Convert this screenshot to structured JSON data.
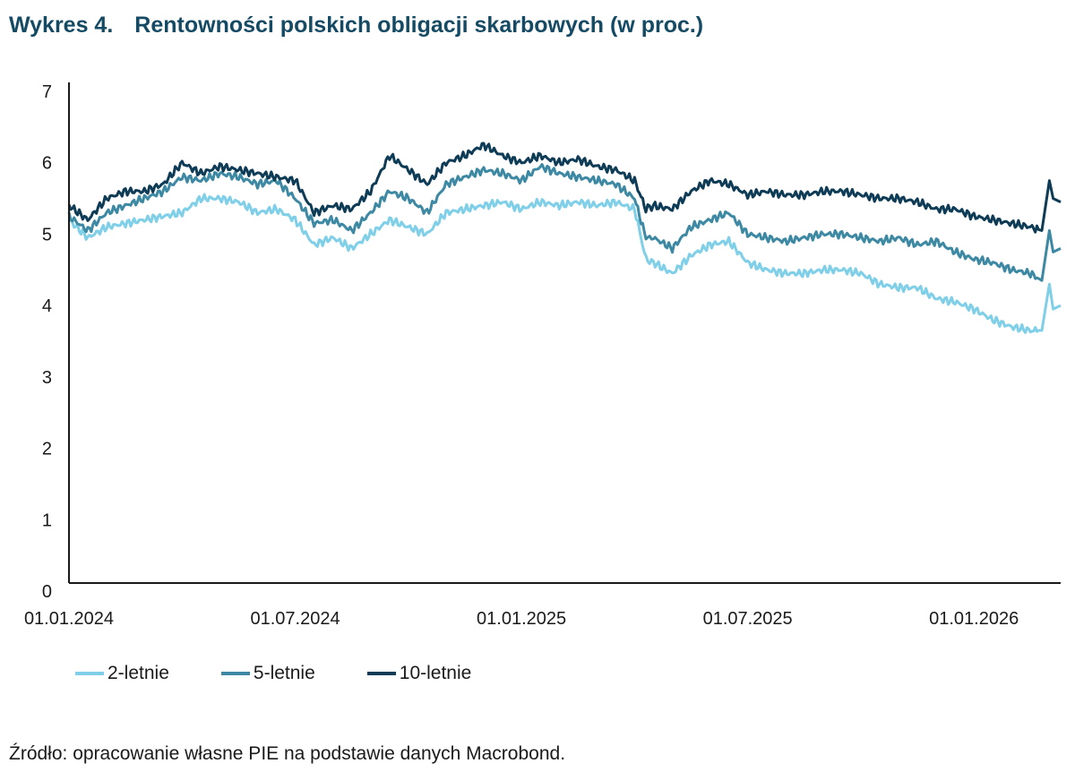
{
  "figure": {
    "number_label": "Wykres 4.",
    "title": "Rentowności polskich obligacji skarbowych (w proc.)",
    "source": "Źródło: opracowanie własne PIE na podstawie danych Macrobond."
  },
  "chart_data": {
    "type": "line",
    "title": "Rentowności polskich obligacji skarbowych (w proc.)",
    "xlabel": "",
    "ylabel": "",
    "ylim": [
      0,
      7
    ],
    "yticks": [
      "0",
      "1",
      "2",
      "3",
      "4",
      "5",
      "6",
      "7"
    ],
    "x_range": [
      "01.01.2024",
      "01.03.2026"
    ],
    "x_range_months": [
      0,
      26.3
    ],
    "xticks": [
      {
        "label": "01.01.2024",
        "month": 0
      },
      {
        "label": "01.07.2024",
        "month": 6
      },
      {
        "label": "01.01.2025",
        "month": 12
      },
      {
        "label": "01.07.2025",
        "month": 18
      },
      {
        "label": "01.01.2026",
        "month": 24
      }
    ],
    "grid": false,
    "legend_position": "bottom-left",
    "x_months": [
      0,
      0.5,
      1,
      1.5,
      2,
      2.5,
      3,
      3.5,
      4,
      4.5,
      5,
      5.5,
      6,
      6.5,
      7,
      7.5,
      8,
      8.5,
      9,
      9.5,
      10,
      10.5,
      11,
      11.5,
      12,
      12.5,
      13,
      13.5,
      14,
      14.5,
      15,
      15.3,
      15.5,
      16,
      16.5,
      17,
      17.5,
      18,
      18.5,
      19,
      19.5,
      20,
      20.5,
      21,
      21.5,
      22,
      22.5,
      23,
      23.5,
      24,
      24.5,
      25,
      25.5,
      25.8,
      26.0,
      26.1,
      26.3
    ],
    "series": [
      {
        "name": "2-letnie",
        "color": "#7fcfe8",
        "values": [
          5.2,
          4.95,
          5.1,
          5.15,
          5.2,
          5.25,
          5.3,
          5.5,
          5.5,
          5.45,
          5.3,
          5.35,
          5.2,
          4.85,
          4.95,
          4.8,
          5.0,
          5.2,
          5.1,
          5.0,
          5.3,
          5.35,
          5.4,
          5.45,
          5.35,
          5.45,
          5.4,
          5.45,
          5.4,
          5.45,
          5.35,
          4.65,
          4.6,
          4.45,
          4.7,
          4.85,
          4.9,
          4.6,
          4.5,
          4.45,
          4.45,
          4.5,
          4.5,
          4.45,
          4.3,
          4.25,
          4.25,
          4.1,
          4.05,
          3.95,
          3.8,
          3.7,
          3.65,
          3.65,
          4.3,
          3.95,
          4.0
        ]
      },
      {
        "name": "5-letnie",
        "color": "#3d89a3",
        "values": [
          5.25,
          5.05,
          5.3,
          5.4,
          5.5,
          5.6,
          5.8,
          5.75,
          5.85,
          5.8,
          5.7,
          5.75,
          5.5,
          5.15,
          5.2,
          5.05,
          5.3,
          5.6,
          5.5,
          5.3,
          5.7,
          5.8,
          5.9,
          5.85,
          5.75,
          5.95,
          5.85,
          5.8,
          5.75,
          5.7,
          5.5,
          4.95,
          4.95,
          4.8,
          5.1,
          5.2,
          5.3,
          5.0,
          4.95,
          4.9,
          4.95,
          5.0,
          5.0,
          4.95,
          4.9,
          4.95,
          4.85,
          4.9,
          4.75,
          4.65,
          4.6,
          4.5,
          4.45,
          4.35,
          5.05,
          4.75,
          4.8
        ]
      },
      {
        "name": "10-letnie",
        "color": "#0e3b55",
        "values": [
          5.4,
          5.2,
          5.5,
          5.6,
          5.6,
          5.7,
          6.0,
          5.85,
          5.95,
          5.9,
          5.85,
          5.8,
          5.75,
          5.3,
          5.4,
          5.35,
          5.6,
          6.1,
          5.9,
          5.7,
          6.0,
          6.1,
          6.25,
          6.1,
          6.0,
          6.1,
          6.0,
          6.05,
          5.95,
          5.9,
          5.75,
          5.35,
          5.4,
          5.35,
          5.6,
          5.75,
          5.7,
          5.55,
          5.6,
          5.55,
          5.55,
          5.6,
          5.6,
          5.55,
          5.5,
          5.5,
          5.45,
          5.35,
          5.35,
          5.25,
          5.2,
          5.15,
          5.1,
          5.05,
          5.75,
          5.5,
          5.45
        ]
      }
    ]
  }
}
